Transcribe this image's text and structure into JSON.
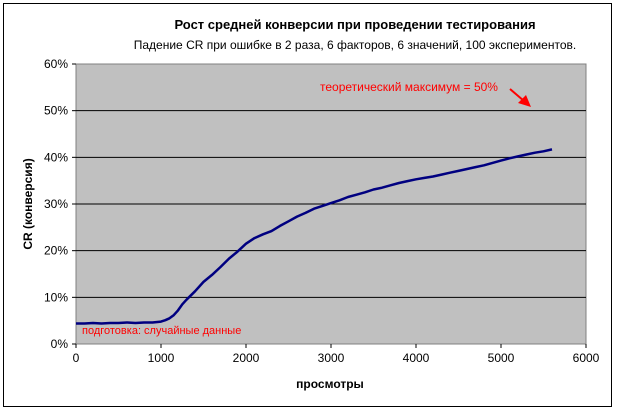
{
  "chart_data": {
    "type": "line",
    "title": "Рост средней конверсии при проведении тестирования",
    "subtitle": "Падение CR при ошибке в 2 раза, 6 факторов, 6 значений, 100 экспериментов.",
    "xlabel": "просмотры",
    "ylabel": "CR (конверсия)",
    "xlim": [
      0,
      6000
    ],
    "ylim": [
      0,
      0.6
    ],
    "x_ticks": [
      "0",
      "1000",
      "2000",
      "3000",
      "4000",
      "5000",
      "6000"
    ],
    "y_ticks": [
      "0%",
      "10%",
      "20%",
      "30%",
      "40%",
      "50%",
      "60%"
    ],
    "grid": "horizontal",
    "legend": "none",
    "plot_background": "#c0c0c0",
    "line_color": "#000080",
    "annotation_color": "#ff0000",
    "annotations": {
      "theoretical_max": "теоретический максимум = 50%",
      "preparation": "подготовка: случайные данные"
    },
    "series": [
      {
        "x": [
          0,
          100,
          200,
          300,
          400,
          500,
          600,
          700,
          800,
          900,
          1000,
          1050,
          1100,
          1150,
          1200,
          1250,
          1300,
          1400,
          1500,
          1600,
          1700,
          1800,
          1900,
          2000,
          2100,
          2200,
          2300,
          2400,
          2500,
          2600,
          2700,
          2800,
          2900,
          3000,
          3100,
          3200,
          3300,
          3400,
          3500,
          3600,
          3700,
          3800,
          3900,
          4000,
          4100,
          4200,
          4300,
          4400,
          4500,
          4600,
          4700,
          4800,
          4900,
          5000,
          5100,
          5200,
          5300,
          5400,
          5500,
          5600
        ],
        "values": [
          0.044,
          0.044,
          0.045,
          0.044,
          0.045,
          0.045,
          0.046,
          0.045,
          0.046,
          0.046,
          0.048,
          0.051,
          0.055,
          0.062,
          0.072,
          0.085,
          0.095,
          0.113,
          0.133,
          0.148,
          0.165,
          0.183,
          0.198,
          0.215,
          0.227,
          0.235,
          0.242,
          0.253,
          0.263,
          0.273,
          0.281,
          0.29,
          0.296,
          0.302,
          0.308,
          0.315,
          0.32,
          0.325,
          0.331,
          0.335,
          0.34,
          0.345,
          0.349,
          0.353,
          0.356,
          0.359,
          0.363,
          0.367,
          0.371,
          0.375,
          0.379,
          0.383,
          0.388,
          0.393,
          0.398,
          0.402,
          0.406,
          0.41,
          0.413,
          0.417
        ]
      }
    ]
  }
}
